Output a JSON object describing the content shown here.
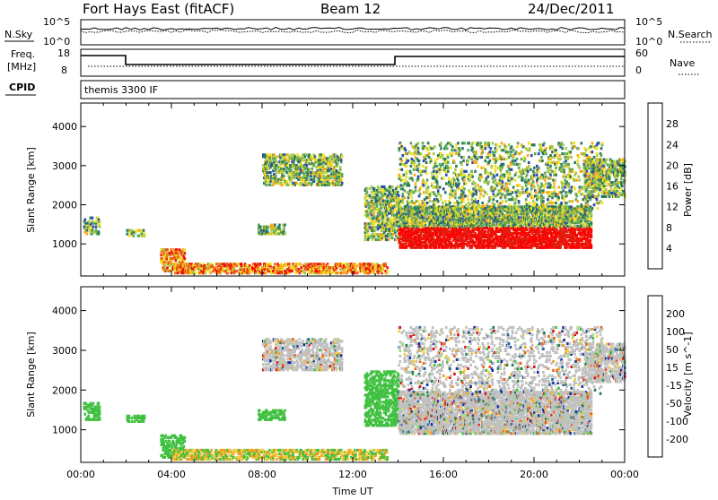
{
  "header": {
    "title": "Fort Hays East (fitACF)",
    "beam": "Beam 12",
    "date": "24/Dec/2011"
  },
  "top_panels": {
    "nsky_label": "N.Sky",
    "nsearch_label": "N.Search",
    "nsky_ticks": [
      "10^5",
      "10^0"
    ],
    "nsearch_ticks": [
      "10^5",
      "10^0"
    ],
    "freq_label": "Freq.",
    "freq_unit": "[MHz]",
    "freq_ticks": [
      "18",
      "8"
    ],
    "nave_label": "Nave",
    "nave_ticks": [
      "60",
      "0"
    ],
    "cpid_label": "CPID",
    "cpid_text": "themis 3300 IF"
  },
  "colors": {
    "freq_line": "#000000",
    "nave_line": "#000000",
    "gray_scatter": "#c0c0c0"
  },
  "chart_data": [
    {
      "type": "heatmap",
      "name": "power",
      "ylabel": "Slant Range [km]",
      "xlabel": "",
      "yticks": [
        "4000",
        "3000",
        "2000",
        "1000"
      ],
      "ylim": [
        180,
        4600
      ],
      "x": [
        "00:00",
        "04:00",
        "08:00",
        "12:00",
        "16:00",
        "20:00",
        "00:00"
      ],
      "colorbar": {
        "label": "Power [dB]",
        "ticks": [
          "28",
          "24",
          "20",
          "16",
          "12",
          "8",
          "4"
        ],
        "colors": [
          "#0000ff",
          "#2a4aa8",
          "#2a7a5a",
          "#5aa85a",
          "#a8c84a",
          "#f0e020",
          "#f8a818",
          "#f06010",
          "#e02010",
          "#ff0000"
        ]
      }
    },
    {
      "type": "heatmap",
      "name": "velocity",
      "ylabel": "Slant Range [km]",
      "xlabel": "Time UT",
      "yticks": [
        "4000",
        "3000",
        "2000",
        "1000"
      ],
      "ylim": [
        180,
        4600
      ],
      "x": [
        "00:00",
        "04:00",
        "08:00",
        "12:00",
        "16:00",
        "20:00",
        "00:00"
      ],
      "colorbar": {
        "label": "Velocity [m s^-1]",
        "ticks": [
          "200",
          "100",
          "50",
          "15",
          "-15",
          "-50",
          "-100",
          "-200"
        ],
        "colors": [
          "#1030a0",
          "#2060a0",
          "#208040",
          "#40c040",
          "#a0e080",
          "#c0c0c0",
          "#f0d040",
          "#f0a020",
          "#f06010",
          "#e01010"
        ]
      }
    }
  ]
}
